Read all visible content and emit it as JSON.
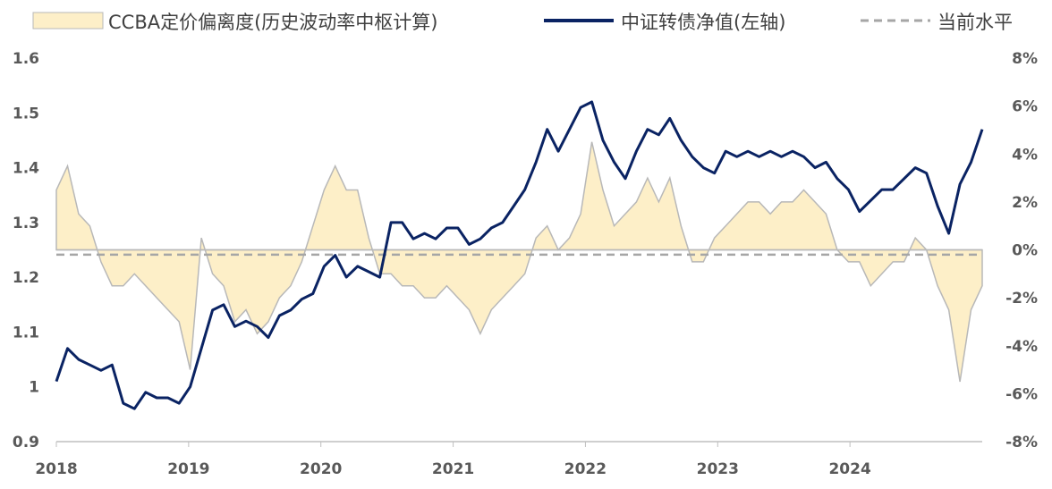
{
  "chart_data": {
    "type": "line+area",
    "legend": [
      {
        "label": "CCBA定价偏离度(历史波动率中枢计算)",
        "kind": "area",
        "color": "#FDEFC8",
        "edge": "#B8B8B8"
      },
      {
        "label": "中证转债净值(左轴)",
        "kind": "line",
        "color": "#0A2363"
      },
      {
        "label": "当前水平",
        "kind": "dashed",
        "color": "#A6A6A6"
      }
    ],
    "legend_position": "top",
    "x_ticks": [
      "2018",
      "2019",
      "2020",
      "2021",
      "2022",
      "2023",
      "2024"
    ],
    "x_start": 2018.0,
    "x_end": 2025.0,
    "y_left": {
      "min": 0.9,
      "max": 1.6,
      "ticks": [
        "0.9",
        "1",
        "1.1",
        "1.2",
        "1.3",
        "1.4",
        "1.5",
        "1.6"
      ]
    },
    "y_right": {
      "min": -8,
      "max": 8,
      "ticks": [
        "-8%",
        "-6%",
        "-4%",
        "-2%",
        "0%",
        "2%",
        "4%",
        "6%",
        "8%"
      ]
    },
    "current_level_pct": -0.2,
    "net_value": [
      1.01,
      1.07,
      1.05,
      1.04,
      1.03,
      1.04,
      0.97,
      0.96,
      0.99,
      0.98,
      0.98,
      0.97,
      1.0,
      1.07,
      1.14,
      1.15,
      1.11,
      1.12,
      1.11,
      1.09,
      1.13,
      1.14,
      1.16,
      1.17,
      1.22,
      1.24,
      1.2,
      1.22,
      1.21,
      1.2,
      1.3,
      1.3,
      1.27,
      1.28,
      1.27,
      1.29,
      1.29,
      1.26,
      1.27,
      1.29,
      1.3,
      1.33,
      1.36,
      1.41,
      1.47,
      1.43,
      1.47,
      1.51,
      1.52,
      1.45,
      1.41,
      1.38,
      1.43,
      1.47,
      1.46,
      1.49,
      1.45,
      1.42,
      1.4,
      1.39,
      1.43,
      1.42,
      1.43,
      1.42,
      1.43,
      1.42,
      1.43,
      1.42,
      1.4,
      1.41,
      1.38,
      1.36,
      1.32,
      1.34,
      1.36,
      1.36,
      1.38,
      1.4,
      1.39,
      1.33,
      1.28,
      1.37,
      1.41,
      1.47
    ],
    "deviation_pct": [
      2.5,
      3.5,
      1.5,
      1.0,
      -0.5,
      -1.5,
      -1.5,
      -1.0,
      -1.5,
      -2.0,
      -2.5,
      -3.0,
      -5.0,
      0.5,
      -1.0,
      -1.5,
      -3.0,
      -2.5,
      -3.5,
      -3.0,
      -2.0,
      -1.5,
      -0.5,
      1.0,
      2.5,
      3.5,
      2.5,
      2.5,
      0.5,
      -1.0,
      -1.0,
      -1.5,
      -1.5,
      -2.0,
      -2.0,
      -1.5,
      -2.0,
      -2.5,
      -3.5,
      -2.5,
      -2.0,
      -1.5,
      -1.0,
      0.5,
      1.0,
      0.0,
      0.5,
      1.5,
      4.5,
      2.5,
      1.0,
      1.5,
      2.0,
      3.0,
      2.0,
      3.0,
      1.0,
      -0.5,
      -0.5,
      0.5,
      1.0,
      1.5,
      2.0,
      2.0,
      1.5,
      2.0,
      2.0,
      2.5,
      2.0,
      1.5,
      0.0,
      -0.5,
      -0.5,
      -1.5,
      -1.0,
      -0.5,
      -0.5,
      0.5,
      0.0,
      -1.5,
      -2.5,
      -5.5,
      -2.5,
      -1.5
    ]
  }
}
